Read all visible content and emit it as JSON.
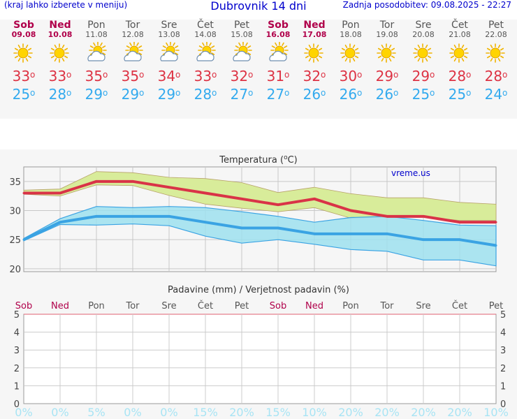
{
  "header": {
    "menu_hint": "(kraj lahko izberete v meniju)",
    "title": "Dubrovnik 14 dni",
    "updated": "Zadnja posodobitev: 09.08.2025 - 22:27"
  },
  "colors": {
    "max_line": "#d93347",
    "min_line": "#3aa3e3",
    "max_band": "#d8ec9a",
    "min_band": "#9ee0ef",
    "weekend": "#b0004a",
    "weekday": "#555555"
  },
  "days": [
    {
      "name": "Sob",
      "date": "09.08",
      "weekend": true,
      "icon": "sun-icon",
      "max": "33",
      "min": "25"
    },
    {
      "name": "Ned",
      "date": "10.08",
      "weekend": true,
      "icon": "sun-icon",
      "max": "33",
      "min": "28"
    },
    {
      "name": "Pon",
      "date": "11.08",
      "weekend": false,
      "icon": "sun-cloud-icon",
      "max": "35",
      "min": "29"
    },
    {
      "name": "Tor",
      "date": "12.08",
      "weekend": false,
      "icon": "sun-cloud-icon",
      "max": "35",
      "min": "29"
    },
    {
      "name": "Sre",
      "date": "13.08",
      "weekend": false,
      "icon": "sun-cloud-icon",
      "max": "34",
      "min": "29"
    },
    {
      "name": "Čet",
      "date": "14.08",
      "weekend": false,
      "icon": "sun-cloud-icon",
      "max": "33",
      "min": "28"
    },
    {
      "name": "Pet",
      "date": "15.08",
      "weekend": false,
      "icon": "sun-cloud-icon",
      "max": "32",
      "min": "27"
    },
    {
      "name": "Sob",
      "date": "16.08",
      "weekend": true,
      "icon": "sun-cloud-icon",
      "max": "31",
      "min": "27"
    },
    {
      "name": "Ned",
      "date": "17.08",
      "weekend": true,
      "icon": "sun-icon",
      "max": "32",
      "min": "26"
    },
    {
      "name": "Pon",
      "date": "18.08",
      "weekend": false,
      "icon": "sun-icon",
      "max": "30",
      "min": "26"
    },
    {
      "name": "Tor",
      "date": "19.08",
      "weekend": false,
      "icon": "sun-icon",
      "max": "29",
      "min": "26"
    },
    {
      "name": "Sre",
      "date": "20.08",
      "weekend": false,
      "icon": "sun-icon",
      "max": "29",
      "min": "25"
    },
    {
      "name": "Čet",
      "date": "21.08",
      "weekend": false,
      "icon": "sun-icon",
      "max": "28",
      "min": "25"
    },
    {
      "name": "Pet",
      "date": "22.08",
      "weekend": false,
      "icon": "sun-icon",
      "max": "28",
      "min": "24"
    }
  ],
  "chart_data": [
    {
      "type": "line",
      "title": "Temperatura (°C)",
      "title_prefix": "Temperatura (",
      "title_unit": "o",
      "title_suffix": "C)",
      "watermark": "vreme.us",
      "categories": [
        "Sob",
        "Ned",
        "Pon",
        "Tor",
        "Sre",
        "Čet",
        "Pet",
        "Sob",
        "Ned",
        "Pon",
        "Tor",
        "Sre",
        "Čet",
        "Pet"
      ],
      "ylim": [
        19.5,
        37.5
      ],
      "yticks": [
        20,
        25,
        30,
        35
      ],
      "series": [
        {
          "name": "max",
          "values": [
            33,
            33,
            35,
            35,
            34,
            33,
            32,
            31,
            32,
            30,
            29,
            29,
            28,
            28
          ]
        },
        {
          "name": "min",
          "values": [
            25,
            28,
            29,
            29,
            29,
            28,
            27,
            27,
            26,
            26,
            26,
            25,
            25,
            24
          ]
        }
      ],
      "max_band": {
        "upper": [
          33.5,
          33.7,
          36.7,
          36.5,
          35.7,
          35.5,
          34.8,
          33.1,
          34.0,
          32.9,
          32.2,
          32.2,
          31.4,
          31.1
        ],
        "lower": [
          32.8,
          32.5,
          34.4,
          34.3,
          32.6,
          31.1,
          30.4,
          29.8,
          30.5,
          28.7,
          28.9,
          28.9,
          28.3,
          28.3
        ]
      },
      "min_band": {
        "upper": [
          25.2,
          28.6,
          30.7,
          30.5,
          30.7,
          30.5,
          29.8,
          29.0,
          28.0,
          28.8,
          29.0,
          28.3,
          27.5,
          27.4
        ],
        "lower": [
          24.8,
          27.6,
          27.5,
          27.7,
          27.4,
          25.6,
          24.4,
          25.0,
          24.2,
          23.3,
          23.0,
          21.5,
          21.5,
          20.5
        ]
      }
    },
    {
      "type": "bar",
      "title": "Padavine (mm) / Verjetnost padavin (%)",
      "categories": [
        "Sob",
        "Ned",
        "Pon",
        "Tor",
        "Sre",
        "Čet",
        "Pet",
        "Sob",
        "Ned",
        "Pon",
        "Tor",
        "Sre",
        "Čet",
        "Pet"
      ],
      "ylim": [
        0,
        5
      ],
      "yticks": [
        0,
        1,
        2,
        3,
        4,
        5
      ],
      "precipitation_mm": [
        0,
        0,
        0,
        0,
        0,
        0,
        0,
        0,
        0,
        0,
        0,
        0,
        0,
        0
      ],
      "probability": [
        "0%",
        "0%",
        "5%",
        "0%",
        "0%",
        "15%",
        "20%",
        "15%",
        "10%",
        "20%",
        "20%",
        "20%",
        "20%",
        "10%"
      ]
    }
  ]
}
